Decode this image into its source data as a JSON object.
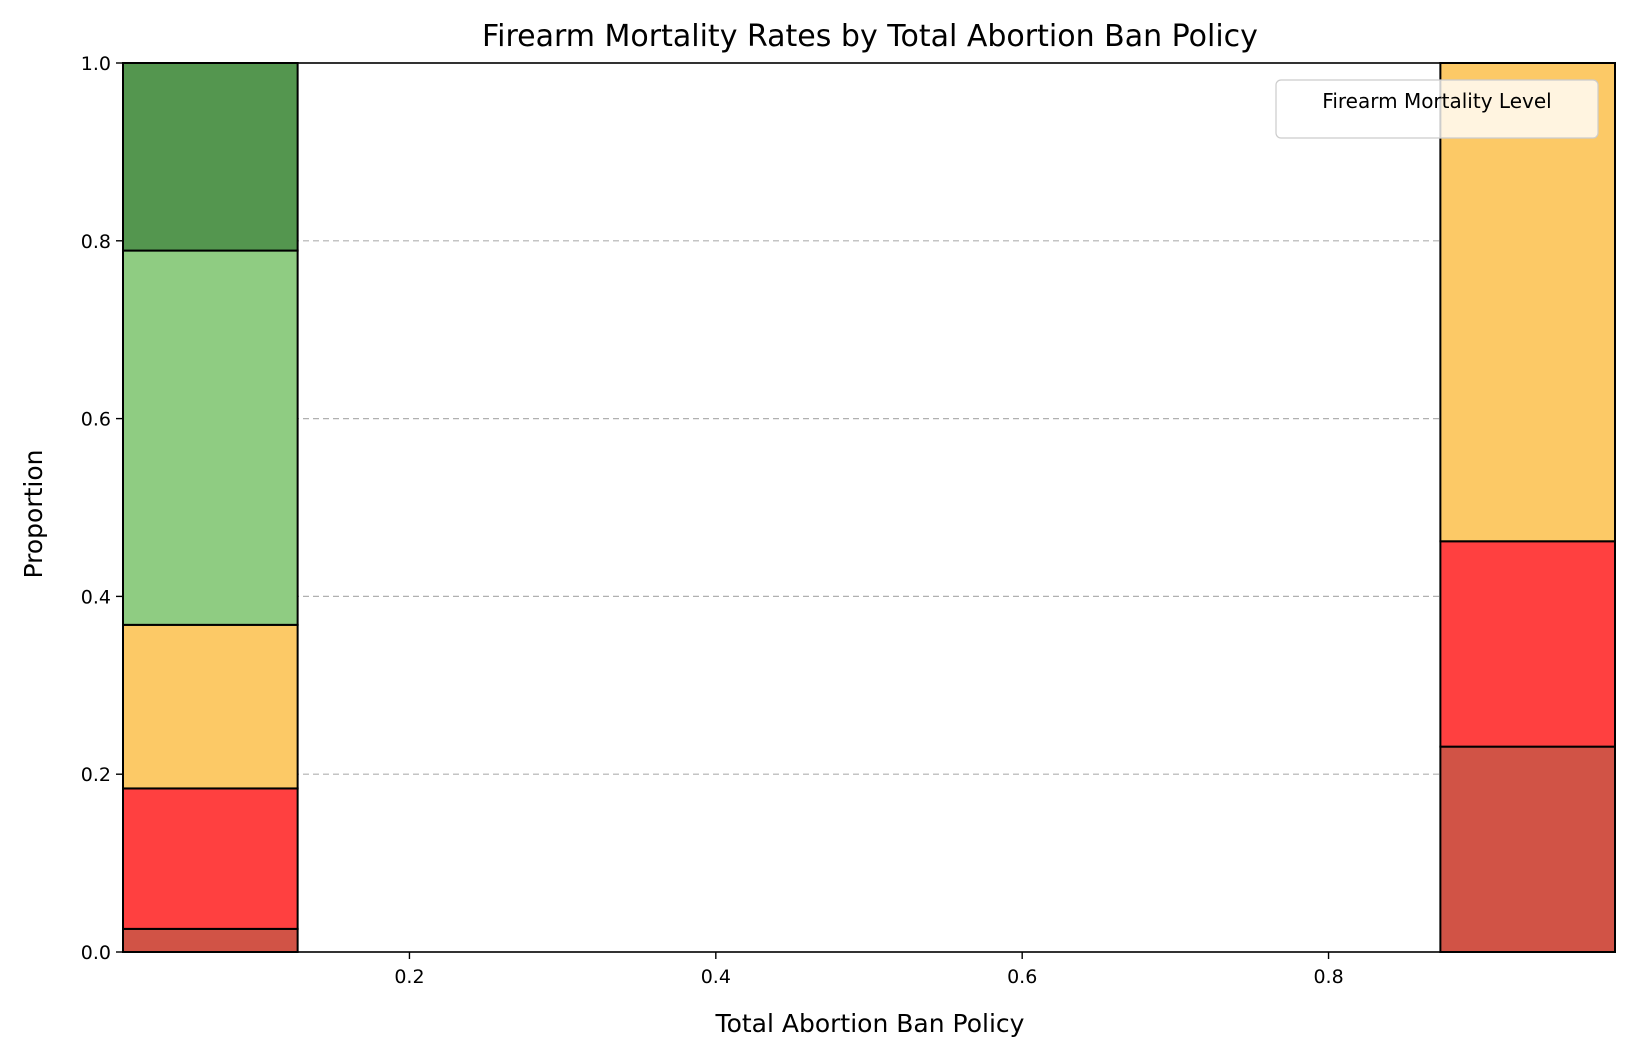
{
  "chart_data": {
    "type": "bar",
    "stacked": true,
    "normalized": true,
    "title": "Firearm Mortality Rates by Total Abortion Ban Policy",
    "xlabel": "Total Abortion Ban Policy",
    "ylabel": "Proportion",
    "xlim": [
      0.013,
      0.987
    ],
    "ylim": [
      0,
      1
    ],
    "xticks": [
      "0.2",
      "0.4",
      "0.6",
      "0.8"
    ],
    "yticks": [
      "0.0",
      "0.2",
      "0.4",
      "0.6",
      "0.8",
      "1.0"
    ],
    "grid": "y-dashed",
    "legend": {
      "title": "Firearm Mortality Level",
      "placement": "top-right",
      "entries": []
    },
    "bars": [
      {
        "x_start": 0.013,
        "x_end": 0.127,
        "segments": [
          {
            "from": 0.0,
            "to": 0.026,
            "color": "#d15346"
          },
          {
            "from": 0.026,
            "to": 0.184,
            "color": "#ff4040"
          },
          {
            "from": 0.184,
            "to": 0.368,
            "color": "#fcc966"
          },
          {
            "from": 0.368,
            "to": 0.789,
            "color": "#8fcc82"
          },
          {
            "from": 0.789,
            "to": 1.0,
            "color": "#54964f"
          }
        ]
      },
      {
        "x_start": 0.873,
        "x_end": 0.987,
        "segments": [
          {
            "from": 0.0,
            "to": 0.231,
            "color": "#d15346"
          },
          {
            "from": 0.231,
            "to": 0.462,
            "color": "#ff4040"
          },
          {
            "from": 0.462,
            "to": 1.0,
            "color": "#fcc966"
          }
        ]
      }
    ]
  }
}
